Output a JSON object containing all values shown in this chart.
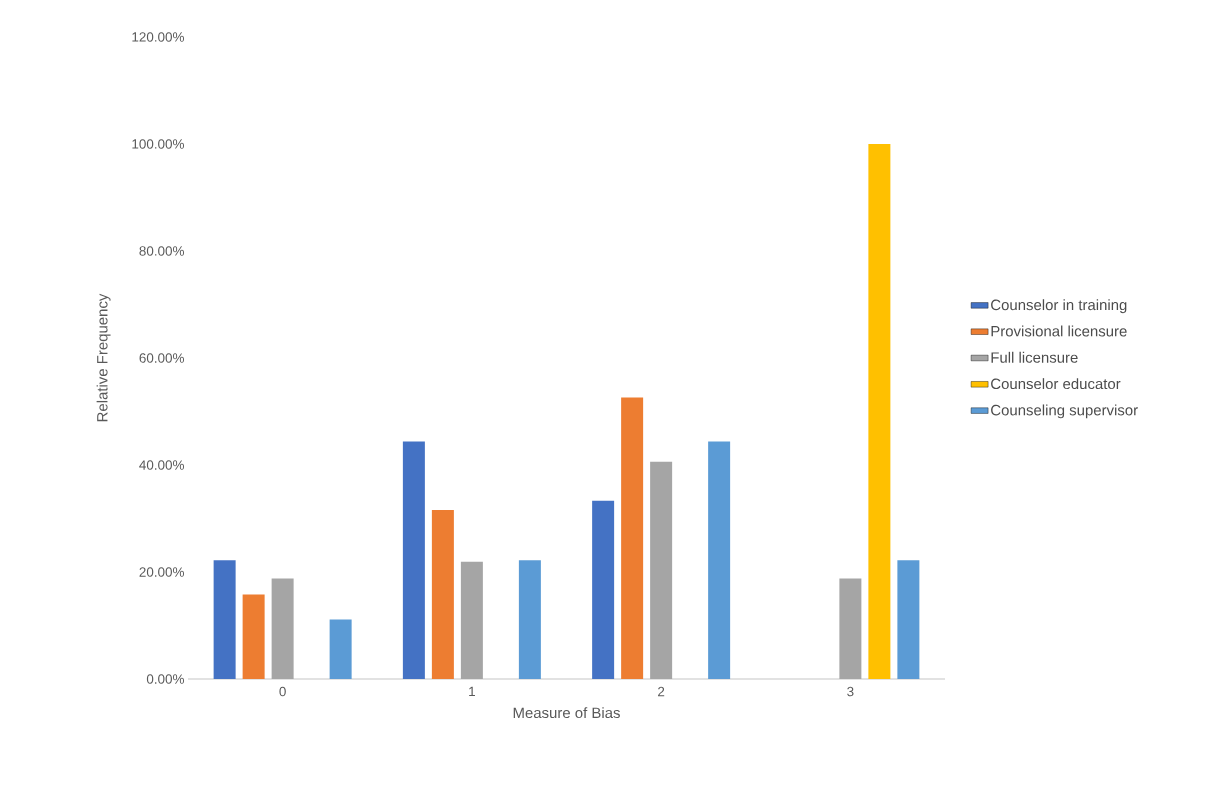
{
  "chart_data": {
    "type": "bar",
    "xlabel": "Measure of Bias",
    "ylabel": "Relative Frequency",
    "categories": [
      "0",
      "1",
      "2",
      "3"
    ],
    "series": [
      {
        "name": "Counselor in training",
        "color": "#4472c4",
        "values": [
          22.2,
          44.4,
          33.3,
          null
        ]
      },
      {
        "name": "Provisional licensure",
        "color": "#ed7d31",
        "values": [
          15.8,
          31.6,
          52.6,
          null
        ]
      },
      {
        "name": "Full licensure",
        "color": "#a5a5a5",
        "values": [
          18.8,
          21.9,
          40.6,
          18.8
        ]
      },
      {
        "name": "Counselor educator",
        "color": "#ffc000",
        "values": [
          null,
          null,
          null,
          100
        ]
      },
      {
        "name": "Counseling supervisor",
        "color": "#5b9bd5",
        "values": [
          11.1,
          22.2,
          44.4,
          22.2
        ]
      }
    ],
    "ylim": [
      0,
      120
    ],
    "yticks": [
      {
        "value": 0,
        "label": "0.00%"
      },
      {
        "value": 20,
        "label": "20.00%"
      },
      {
        "value": 40,
        "label": "40.00%"
      },
      {
        "value": 60,
        "label": "60.00%"
      },
      {
        "value": 80,
        "label": "80.00%"
      },
      {
        "value": 100,
        "label": "100.00%"
      },
      {
        "value": 120,
        "label": "120.00%"
      }
    ],
    "grid": false,
    "legend": "right"
  }
}
